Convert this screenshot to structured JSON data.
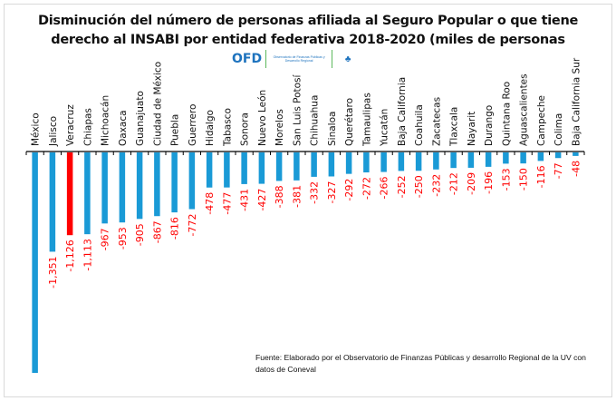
{
  "chart_data": {
    "type": "bar",
    "title": "Disminución del número de personas  afiliada al Seguro Popular o que tiene derecho al INSABI por entidad federativa 2018-2020 (miles de personas",
    "title_lines": [
      "Disminución del número de personas  afiliada al Seguro Popular o que tiene",
      "derecho al INSABI por entidad federativa 2018-2020 (miles de personas"
    ],
    "xlabel": "",
    "ylabel": "",
    "categories": [
      "México",
      "Jalisco",
      "Veracruz",
      "Chiapas",
      "Michoacán",
      "Oaxaca",
      "Guanajuato",
      "Ciudad de México",
      "Puebla",
      "Guerrero",
      "Hidalgo",
      "Tabasco",
      "Sonora",
      "Nuevo León",
      "Morelos",
      "San Luis Potosí",
      "Chihuahua",
      "Sinaloa",
      "Querétaro",
      "Tamaulipas",
      "Yucatán",
      "Baja California",
      "Coahuila",
      "Zacatecas",
      "Tlaxcala",
      "Nayarit",
      "Durango",
      "Quintana Roo",
      "Aguascalientes",
      "Campeche",
      "Colima",
      "Baja California Sur"
    ],
    "values": [
      -3000,
      -1351,
      -1126,
      -1113,
      -967,
      -953,
      -905,
      -867,
      -816,
      -772,
      -478,
      -477,
      -431,
      -427,
      -388,
      -381,
      -332,
      -327,
      -292,
      -272,
      -266,
      -252,
      -250,
      -232,
      -212,
      -209,
      -196,
      -153,
      -150,
      -116,
      -77,
      -48
    ],
    "value_labels": [
      "",
      "-1,351",
      "-1,126",
      "-1,113",
      "-967",
      "-953",
      "-905",
      "-867",
      "-816",
      "-772",
      "-478",
      "-477",
      "-431",
      "-427",
      "-388",
      "-381",
      "-332",
      "-327",
      "-292",
      "-272",
      "-266",
      "-252",
      "-250",
      "-232",
      "-212",
      "-209",
      "-196",
      "-153",
      "-150",
      "-116",
      "-77",
      "-48"
    ],
    "highlight_category": "Veracruz",
    "colors": {
      "bar": "#1a9ad6",
      "highlight": "#ff0000",
      "value_label": "#ff0000",
      "axis": "#000000"
    },
    "ylim": [
      -3000,
      0
    ],
    "grid": false,
    "legend": "none"
  },
  "logo": {
    "abbr": "OFD",
    "name_line1": "Observatorio de Finanzas Públicas y",
    "name_line2": "Desarrollo Regional",
    "emblem": "university-emblem-icon"
  },
  "source": "Fuente: Elaborado por el Observatorio de Finanzas Públicas y desarrollo Regional de la UV con datos de Coneval"
}
